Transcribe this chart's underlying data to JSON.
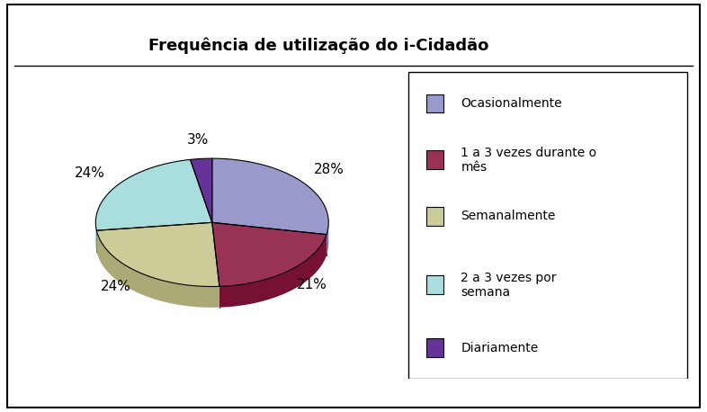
{
  "title": "Frequência de utilização do i-Cidadão",
  "values": [
    28,
    21,
    24,
    24,
    3
  ],
  "colors": [
    "#9999CC",
    "#993355",
    "#CCCC99",
    "#AADDDD",
    "#663399"
  ],
  "shadow_colors": [
    "#7777AA",
    "#771133",
    "#AAAA77",
    "#88BBBB",
    "#441177"
  ],
  "pct_labels": [
    "28%",
    "21%",
    "24%",
    "24%",
    "3%"
  ],
  "legend_labels": [
    "Ocasionalmente",
    "1 a 3 vezes durante o\nmês",
    "Semanalmente",
    "2 a 3 vezes por\nsemana",
    "Diariamente"
  ],
  "title_fontsize": 13,
  "label_fontsize": 11,
  "legend_fontsize": 11,
  "background_color": "#ffffff",
  "startangle": 90
}
